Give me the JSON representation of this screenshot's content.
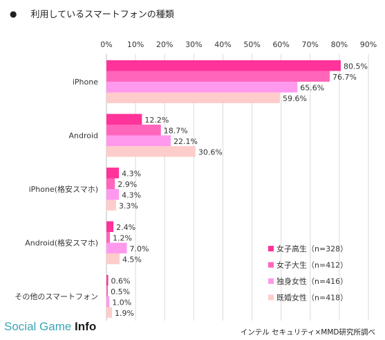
{
  "header": {
    "bullet": "●",
    "title": "利用しているスマートフォンの種類"
  },
  "chart_data": {
    "type": "bar",
    "orientation": "horizontal",
    "categories": [
      "iPhone",
      "Android",
      "iPhone(格安スマホ)",
      "Android(格安スマホ)",
      "その他のスマートフォン"
    ],
    "series": [
      {
        "name": "女子高生（n=328）",
        "color": "#ff3399",
        "values": [
          80.5,
          12.2,
          4.3,
          2.4,
          0.6
        ],
        "labels": [
          "80.5%",
          "12.2%",
          "4.3%",
          "2.4%",
          "0.6%"
        ]
      },
      {
        "name": "女子大生（n=412）",
        "color": "#ff66bb",
        "values": [
          76.7,
          18.7,
          2.9,
          1.2,
          0.5
        ],
        "labels": [
          "76.7%",
          "18.7%",
          "2.9%",
          "1.2%",
          "0.5%"
        ]
      },
      {
        "name": "独身女性（n=416）",
        "color": "#ff99ee",
        "values": [
          65.6,
          22.1,
          4.3,
          7.0,
          1.0
        ],
        "labels": [
          "65.6%",
          "22.1%",
          "4.3%",
          "7.0%",
          "1.0%"
        ]
      },
      {
        "name": "既婚女性（n=418）",
        "color": "#ffcccc",
        "values": [
          59.6,
          30.6,
          3.3,
          4.5,
          1.9
        ],
        "labels": [
          "59.6%",
          "30.6%",
          "3.3%",
          "4.5%",
          "1.9%"
        ]
      }
    ],
    "xlim": [
      0,
      90
    ],
    "xticks": [
      "0%",
      "10%",
      "20%",
      "30%",
      "40%",
      "50%",
      "60%",
      "70%",
      "80%",
      "90%"
    ],
    "grid": true,
    "legend_position": "bottom-right"
  },
  "footer": {
    "brand_main": "Social Game ",
    "brand_bold": "Info",
    "source": "インテル セキュリティ×MMD研究所調べ"
  }
}
